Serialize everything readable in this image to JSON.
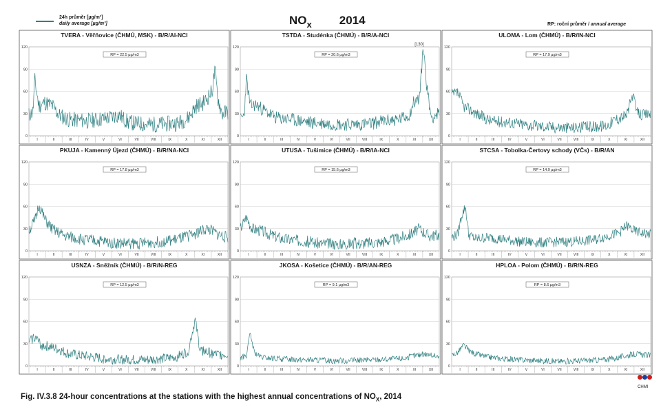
{
  "header": {
    "legend_line1": "24h průměr [µg/m³]",
    "legend_line2": "daily average [µg/m³]",
    "title_pollutant": "NO",
    "title_subscript": "x",
    "title_year": "2014",
    "rp_note_cz": "RP: roční průměr / ",
    "rp_note_en": "annual average"
  },
  "caption": {
    "prefix": "Fig. IV.3.8  24-hour concentrations at the stations with the highest annual concentrations of NO",
    "subscript": "X",
    "suffix": ", 2014"
  },
  "logo_text": "CHMI",
  "colors": {
    "series": "#2f7f80",
    "grid": "#bfbfbf",
    "frame": "#555555"
  },
  "chart_data": [
    {
      "type": "line",
      "title": "TVERA - Věřňovice (ČHMÚ, MSK) - B/R/AI-NCI",
      "rp_label": "RP = 22.5 µg/m3",
      "ylim": [
        0,
        120
      ],
      "yticks": [
        0,
        30,
        60,
        90,
        120
      ],
      "months": [
        "I",
        "II",
        "III",
        "IV",
        "V",
        "VI",
        "VII",
        "VIII",
        "IX",
        "X",
        "XI",
        "XII"
      ],
      "shape": [
        [
          0,
          28
        ],
        [
          0.02,
          32
        ],
        [
          0.03,
          75
        ],
        [
          0.05,
          40
        ],
        [
          0.08,
          45
        ],
        [
          0.12,
          40
        ],
        [
          0.15,
          28
        ],
        [
          0.2,
          22
        ],
        [
          0.3,
          20
        ],
        [
          0.4,
          24
        ],
        [
          0.45,
          28
        ],
        [
          0.5,
          18
        ],
        [
          0.6,
          15
        ],
        [
          0.7,
          16
        ],
        [
          0.75,
          17
        ],
        [
          0.8,
          24
        ],
        [
          0.84,
          40
        ],
        [
          0.88,
          45
        ],
        [
          0.92,
          60
        ],
        [
          0.935,
          88
        ],
        [
          0.95,
          50
        ],
        [
          0.97,
          30
        ],
        [
          1,
          32
        ]
      ],
      "noise": 11,
      "seed": 11
    },
    {
      "type": "line",
      "title": "TSTDA - Studénka (ČHMÚ) - B/R/A-NCI",
      "rp_label": "RP = 20.6 µg/m3",
      "peak_label": "[130]",
      "ylim": [
        0,
        120
      ],
      "yticks": [
        0,
        30,
        60,
        90,
        120
      ],
      "months": [
        "I",
        "II",
        "III",
        "IV",
        "V",
        "VI",
        "VII",
        "VIII",
        "IX",
        "X",
        "XI",
        "XII"
      ],
      "shape": [
        [
          0,
          22
        ],
        [
          0.02,
          28
        ],
        [
          0.03,
          78
        ],
        [
          0.05,
          40
        ],
        [
          0.08,
          42
        ],
        [
          0.12,
          34
        ],
        [
          0.18,
          24
        ],
        [
          0.25,
          22
        ],
        [
          0.35,
          18
        ],
        [
          0.45,
          16
        ],
        [
          0.55,
          15
        ],
        [
          0.65,
          16
        ],
        [
          0.72,
          20
        ],
        [
          0.8,
          22
        ],
        [
          0.85,
          28
        ],
        [
          0.87,
          45
        ],
        [
          0.9,
          50
        ],
        [
          0.92,
          120
        ],
        [
          0.94,
          60
        ],
        [
          0.96,
          25
        ],
        [
          1,
          30
        ]
      ],
      "noise": 9,
      "seed": 23
    },
    {
      "type": "line",
      "title": "ULOMA - Lom (ČHMÚ) - B/R/IN-NCI",
      "rp_label": "RP = 17.9 µg/m3",
      "ylim": [
        0,
        120
      ],
      "yticks": [
        0,
        30,
        60,
        90,
        120
      ],
      "months": [
        "I",
        "II",
        "III",
        "IV",
        "V",
        "VI",
        "VII",
        "VIII",
        "IX",
        "X",
        "XI",
        "XII"
      ],
      "shape": [
        [
          0,
          55
        ],
        [
          0.03,
          58
        ],
        [
          0.06,
          40
        ],
        [
          0.1,
          34
        ],
        [
          0.15,
          26
        ],
        [
          0.2,
          20
        ],
        [
          0.3,
          18
        ],
        [
          0.4,
          14
        ],
        [
          0.5,
          12
        ],
        [
          0.6,
          11
        ],
        [
          0.7,
          12
        ],
        [
          0.78,
          14
        ],
        [
          0.82,
          22
        ],
        [
          0.88,
          28
        ],
        [
          0.91,
          55
        ],
        [
          0.93,
          32
        ],
        [
          0.96,
          28
        ],
        [
          1,
          30
        ]
      ],
      "noise": 8,
      "seed": 37
    },
    {
      "type": "line",
      "title": "PKUJA - Kamenný Újezd (ČHMÚ) - B/R/NA-NCI",
      "rp_label": "RP = 17.8 µg/m3",
      "ylim": [
        0,
        120
      ],
      "yticks": [
        0,
        30,
        60,
        90,
        120
      ],
      "months": [
        "I",
        "II",
        "III",
        "IV",
        "V",
        "VI",
        "VII",
        "VIII",
        "IX",
        "X",
        "XI",
        "XII"
      ],
      "shape": [
        [
          0,
          28
        ],
        [
          0.03,
          40
        ],
        [
          0.05,
          62
        ],
        [
          0.08,
          42
        ],
        [
          0.12,
          28
        ],
        [
          0.18,
          20
        ],
        [
          0.25,
          16
        ],
        [
          0.35,
          13
        ],
        [
          0.45,
          10
        ],
        [
          0.55,
          10
        ],
        [
          0.65,
          12
        ],
        [
          0.72,
          14
        ],
        [
          0.78,
          18
        ],
        [
          0.84,
          24
        ],
        [
          0.9,
          30
        ],
        [
          0.95,
          22
        ],
        [
          1,
          18
        ]
      ],
      "noise": 8,
      "seed": 51
    },
    {
      "type": "line",
      "title": "UTUSA - Tušimice (ČHMÚ) - B/R/IA-NCI",
      "rp_label": "RP = 15.6 µg/m3",
      "ylim": [
        0,
        120
      ],
      "yticks": [
        0,
        30,
        60,
        90,
        120
      ],
      "months": [
        "I",
        "II",
        "III",
        "IV",
        "V",
        "VI",
        "VII",
        "VIII",
        "IX",
        "X",
        "XI",
        "XII"
      ],
      "shape": [
        [
          0,
          30
        ],
        [
          0.03,
          46
        ],
        [
          0.06,
          30
        ],
        [
          0.1,
          28
        ],
        [
          0.15,
          22
        ],
        [
          0.22,
          16
        ],
        [
          0.3,
          14
        ],
        [
          0.4,
          10
        ],
        [
          0.5,
          9
        ],
        [
          0.6,
          10
        ],
        [
          0.7,
          12
        ],
        [
          0.78,
          16
        ],
        [
          0.85,
          22
        ],
        [
          0.9,
          30
        ],
        [
          0.95,
          20
        ],
        [
          1,
          22
        ]
      ],
      "noise": 8,
      "seed": 67
    },
    {
      "type": "line",
      "title": "STCSA - Tobolka-Čertovy schody (VČs) - B/R/AN",
      "rp_label": "RP = 14.9 µg/m3",
      "ylim": [
        0,
        120
      ],
      "yticks": [
        0,
        30,
        60,
        90,
        120
      ],
      "months": [
        "I",
        "II",
        "III",
        "IV",
        "V",
        "VI",
        "VII",
        "VIII",
        "IX",
        "X",
        "XI",
        "XII"
      ],
      "shape": [
        [
          0,
          18
        ],
        [
          0.03,
          22
        ],
        [
          0.05,
          48
        ],
        [
          0.07,
          60
        ],
        [
          0.085,
          22
        ],
        [
          0.12,
          16
        ],
        [
          0.18,
          18
        ],
        [
          0.25,
          16
        ],
        [
          0.35,
          12
        ],
        [
          0.45,
          11
        ],
        [
          0.55,
          12
        ],
        [
          0.65,
          13
        ],
        [
          0.72,
          15
        ],
        [
          0.78,
          20
        ],
        [
          0.84,
          24
        ],
        [
          0.88,
          34
        ],
        [
          0.92,
          26
        ],
        [
          0.96,
          24
        ],
        [
          1,
          22
        ]
      ],
      "noise": 7,
      "seed": 79
    },
    {
      "type": "line",
      "title": "USNZA - Sněžník (ČHMÚ) - B/R/N-REG",
      "rp_label": "RP = 12.5 µg/m3",
      "ylim": [
        0,
        120
      ],
      "yticks": [
        0,
        30,
        60,
        90,
        120
      ],
      "months": [
        "I",
        "II",
        "III",
        "IV",
        "V",
        "VI",
        "VII",
        "VIII",
        "IX",
        "X",
        "XI",
        "XII"
      ],
      "shape": [
        [
          0,
          32
        ],
        [
          0.03,
          40
        ],
        [
          0.06,
          28
        ],
        [
          0.1,
          26
        ],
        [
          0.15,
          22
        ],
        [
          0.2,
          16
        ],
        [
          0.3,
          12
        ],
        [
          0.4,
          9
        ],
        [
          0.5,
          8
        ],
        [
          0.6,
          8
        ],
        [
          0.7,
          10
        ],
        [
          0.76,
          14
        ],
        [
          0.8,
          20
        ],
        [
          0.835,
          62
        ],
        [
          0.86,
          22
        ],
        [
          0.9,
          18
        ],
        [
          0.95,
          15
        ],
        [
          1,
          16
        ]
      ],
      "noise": 7,
      "seed": 93
    },
    {
      "type": "line",
      "title": "JKOSA - Košetice (ČHMÚ) - B/R/AN-REG",
      "rp_label": "RP = 9.1 µg/m3",
      "ylim": [
        0,
        120
      ],
      "yticks": [
        0,
        30,
        60,
        90,
        120
      ],
      "months": [
        "I",
        "II",
        "III",
        "IV",
        "V",
        "VI",
        "VII",
        "VIII",
        "IX",
        "X",
        "XI",
        "XII"
      ],
      "shape": [
        [
          0,
          10
        ],
        [
          0.03,
          14
        ],
        [
          0.05,
          44
        ],
        [
          0.07,
          18
        ],
        [
          0.1,
          12
        ],
        [
          0.15,
          10
        ],
        [
          0.25,
          9
        ],
        [
          0.35,
          8
        ],
        [
          0.45,
          7
        ],
        [
          0.55,
          7
        ],
        [
          0.65,
          8
        ],
        [
          0.75,
          9
        ],
        [
          0.82,
          10
        ],
        [
          0.88,
          14
        ],
        [
          0.93,
          16
        ],
        [
          1,
          12
        ]
      ],
      "noise": 4,
      "seed": 107
    },
    {
      "type": "line",
      "title": "HPLOA - Polom (ČHMÚ) - B/R/N-REG",
      "rp_label": "RP = 8.6 µg/m3",
      "ylim": [
        0,
        120
      ],
      "yticks": [
        0,
        30,
        60,
        90,
        120
      ],
      "months": [
        "I",
        "II",
        "III",
        "IV",
        "V",
        "VI",
        "VII",
        "VIII",
        "IX",
        "X",
        "XI",
        "XII"
      ],
      "shape": [
        [
          0,
          14
        ],
        [
          0.03,
          18
        ],
        [
          0.06,
          28
        ],
        [
          0.09,
          20
        ],
        [
          0.12,
          16
        ],
        [
          0.18,
          12
        ],
        [
          0.25,
          10
        ],
        [
          0.35,
          8
        ],
        [
          0.45,
          7
        ],
        [
          0.55,
          6
        ],
        [
          0.65,
          7
        ],
        [
          0.75,
          8
        ],
        [
          0.82,
          10
        ],
        [
          0.88,
          14
        ],
        [
          0.93,
          16
        ],
        [
          1,
          14
        ]
      ],
      "noise": 4,
      "seed": 121
    }
  ]
}
